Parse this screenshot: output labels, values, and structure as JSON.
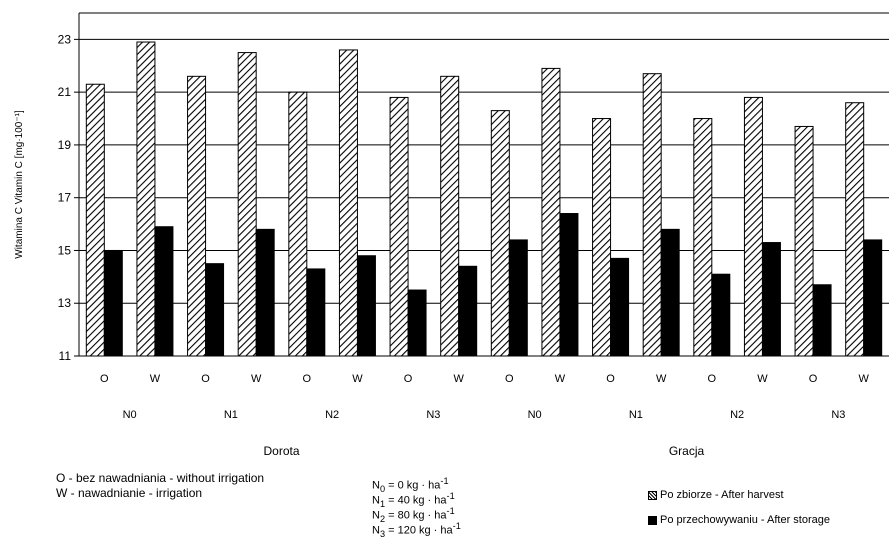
{
  "chart_data": {
    "type": "bar",
    "ylabel": "Witamina C  Vitamin C [mg·100⁻¹]",
    "ylim": [
      11,
      24
    ],
    "yticks": [
      11,
      13,
      15,
      17,
      19,
      21,
      23
    ],
    "grid": true,
    "categories": [
      "O",
      "W",
      "O",
      "W",
      "O",
      "W",
      "O",
      "W",
      "O",
      "W",
      "O",
      "W",
      "O",
      "W",
      "O",
      "W"
    ],
    "groups": [
      "N0",
      "N1",
      "N2",
      "N3",
      "N0",
      "N1",
      "N2",
      "N3"
    ],
    "cultivars": [
      "Dorota",
      "Gracja"
    ],
    "series": [
      {
        "name": "Po zbiorze - After harvest",
        "pattern": "hatch",
        "values": [
          21.3,
          22.9,
          21.6,
          22.5,
          21.0,
          22.6,
          20.8,
          21.6,
          20.3,
          21.9,
          20.0,
          21.7,
          20.0,
          20.8,
          19.7,
          20.6
        ]
      },
      {
        "name": "Po przechowywaniu - After storage",
        "pattern": "solid",
        "values": [
          15.0,
          15.9,
          14.5,
          15.8,
          14.3,
          14.8,
          13.5,
          14.4,
          15.4,
          16.4,
          14.7,
          15.8,
          14.1,
          15.3,
          13.7,
          15.4
        ]
      }
    ],
    "legend": "bottom-right"
  },
  "notes": {
    "irrigation_o": "O - bez nawadniania  - without irrigation",
    "irrigation_w": "W - nawadnianie  - irrigation"
  },
  "n_legend": [
    {
      "sub": "0",
      "value": "= 0 kg · ha",
      "sup": "-1"
    },
    {
      "sub": "1",
      "value": "= 40 kg · ha",
      "sup": "-1"
    },
    {
      "sub": "2",
      "value": "= 80 kg · ha",
      "sup": "-1"
    },
    {
      "sub": "3",
      "value": "= 120 kg · ha",
      "sup": "-1"
    }
  ],
  "colors": {
    "axis": "#000000",
    "grid": "#000000",
    "bar_solid": "#000000",
    "bar_hatch_bg": "#ffffff"
  }
}
